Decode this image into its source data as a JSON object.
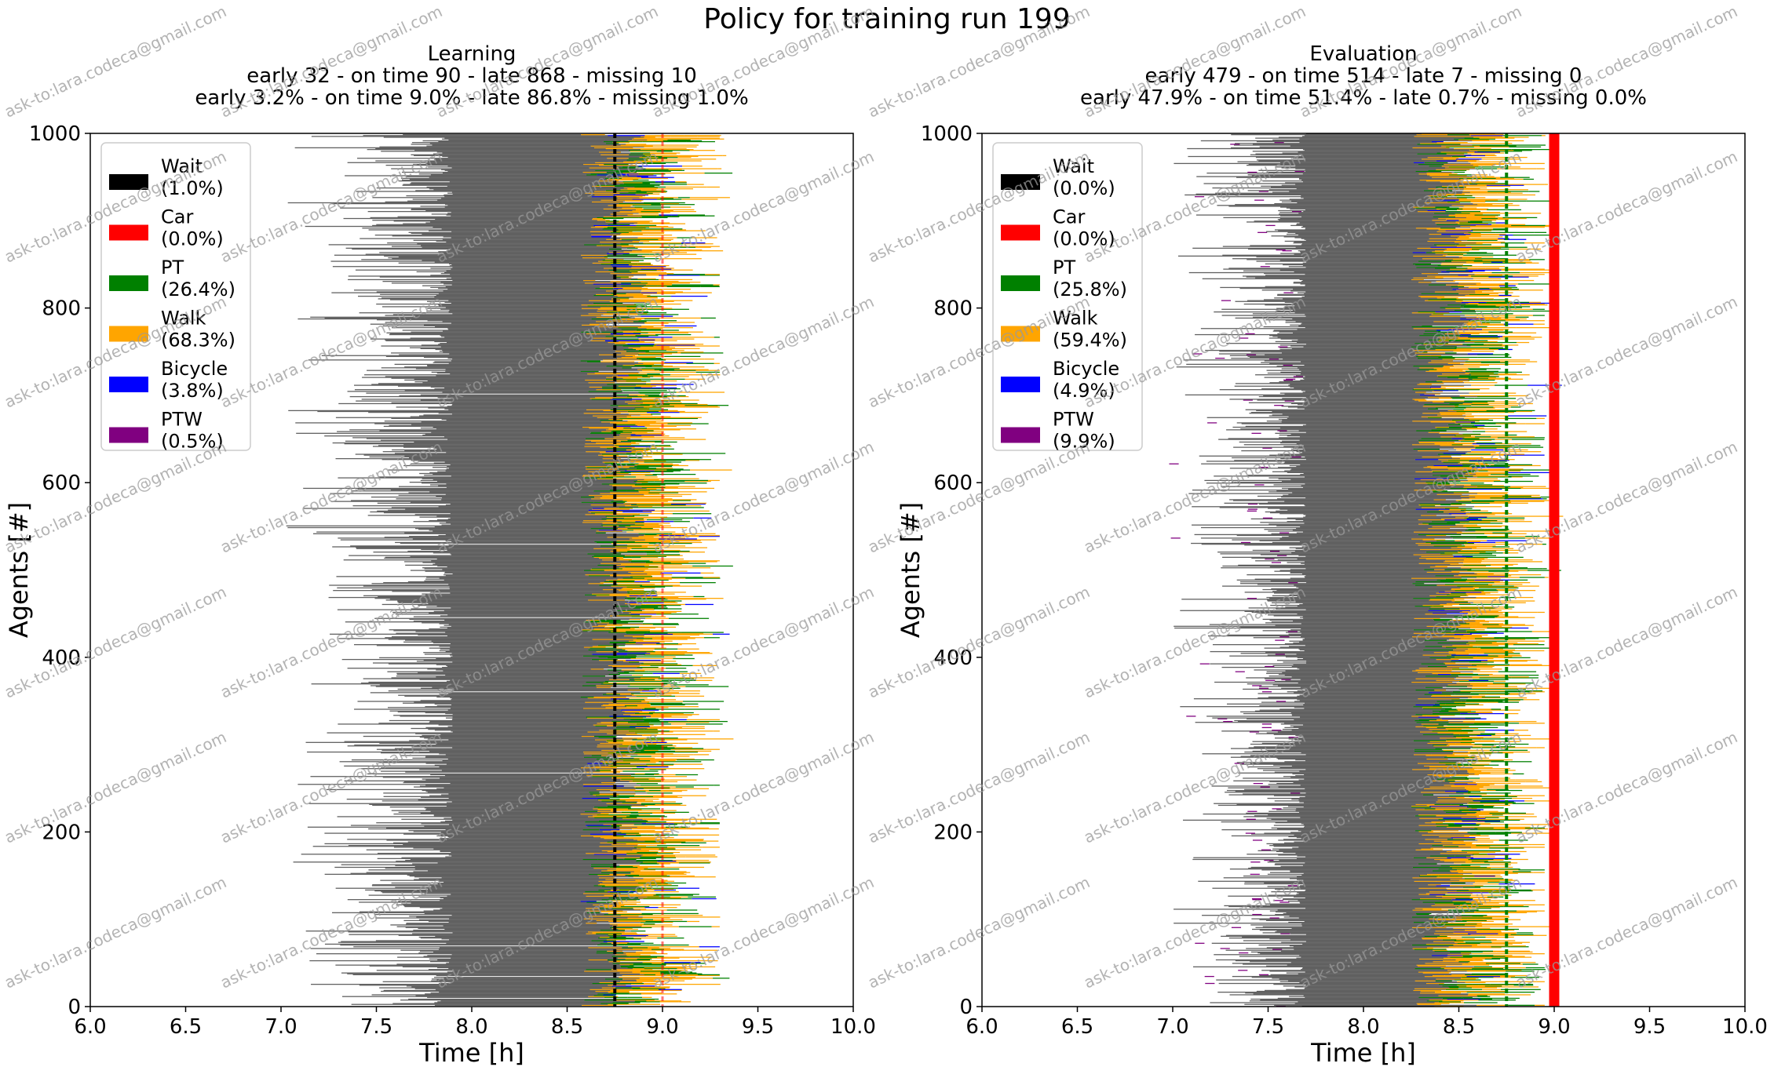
{
  "suptitle": "Policy for training run 199",
  "watermark": "ask-to:lara.codeca@gmail.com",
  "colors": {
    "Wait": "#000000",
    "Car": "#ff0000",
    "PT": "#008000",
    "Walk": "#ffa500",
    "Bicycle": "#0000ff",
    "PTW": "#800080",
    "travel": "#606060"
  },
  "chart_data": [
    {
      "type": "timeline",
      "title": "Learning",
      "subtitle1": "early 32 - on time 90 - late 868 - missing 10",
      "subtitle2": "early 3.2% - on time 9.0% - late 86.8% - missing 1.0%",
      "xlabel": "Time [h]",
      "ylabel": "Agents [#]",
      "xlim": [
        6.0,
        10.0
      ],
      "ylim": [
        0,
        1000
      ],
      "xticks": [
        "6.0",
        "6.5",
        "7.0",
        "7.5",
        "8.0",
        "8.5",
        "9.0",
        "9.5",
        "10.0"
      ],
      "yticks": [
        "0",
        "200",
        "400",
        "600",
        "800",
        "1000"
      ],
      "legend_position": "upper-left",
      "legend": [
        {
          "mode": "Wait",
          "label": "Wait",
          "share": "(1.0%)"
        },
        {
          "mode": "Car",
          "label": "Car",
          "share": "(0.0%)"
        },
        {
          "mode": "PT",
          "label": "PT",
          "share": "(26.4%)"
        },
        {
          "mode": "Walk",
          "label": "Walk",
          "share": "(68.3%)"
        },
        {
          "mode": "Bicycle",
          "label": "Bicycle",
          "share": "(3.8%)"
        },
        {
          "mode": "PTW",
          "label": "PTW",
          "share": "(0.5%)"
        }
      ],
      "counts": {
        "early": 32,
        "on_time": 90,
        "late": 868,
        "missing": 10
      },
      "distribution": {
        "start_min": 7.0,
        "start_dense": 7.9,
        "dense_end": 8.72,
        "arrival_max": 9.3
      },
      "vertical_lines": [
        {
          "x": 8.75,
          "mode": "Wait",
          "style": "dashed"
        },
        {
          "x": 9.0,
          "mode": "Car",
          "style": "dashed-light"
        }
      ]
    },
    {
      "type": "timeline",
      "title": "Evaluation",
      "subtitle1": "early 479 - on time 514 - late 7 - missing 0",
      "subtitle2": "early 47.9% - on time 51.4% - late 0.7% - missing 0.0%",
      "xlabel": "Time [h]",
      "ylabel": "Agents [#]",
      "xlim": [
        6.0,
        10.0
      ],
      "ylim": [
        0,
        1000
      ],
      "xticks": [
        "6.0",
        "6.5",
        "7.0",
        "7.5",
        "8.0",
        "8.5",
        "9.0",
        "9.5",
        "10.0"
      ],
      "yticks": [
        "0",
        "200",
        "400",
        "600",
        "800",
        "1000"
      ],
      "legend_position": "upper-left",
      "legend": [
        {
          "mode": "Wait",
          "label": "Wait",
          "share": "(0.0%)"
        },
        {
          "mode": "Car",
          "label": "Car",
          "share": "(0.0%)"
        },
        {
          "mode": "PT",
          "label": "PT",
          "share": "(25.8%)"
        },
        {
          "mode": "Walk",
          "label": "Walk",
          "share": "(59.4%)"
        },
        {
          "mode": "Bicycle",
          "label": "Bicycle",
          "share": "(4.9%)"
        },
        {
          "mode": "PTW",
          "label": "PTW",
          "share": "(9.9%)"
        }
      ],
      "counts": {
        "early": 479,
        "on_time": 514,
        "late": 7,
        "missing": 0
      },
      "distribution": {
        "start_min": 7.0,
        "start_dense": 7.7,
        "dense_end": 8.4,
        "arrival_max": 8.95
      },
      "vertical_lines": [
        {
          "x": 8.75,
          "mode": "PT",
          "style": "dashed"
        },
        {
          "x": 9.0,
          "mode": "Car",
          "style": "solid-thick"
        }
      ]
    }
  ]
}
